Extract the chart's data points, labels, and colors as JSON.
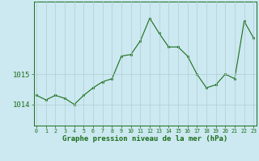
{
  "x": [
    0,
    1,
    2,
    3,
    4,
    5,
    6,
    7,
    8,
    9,
    10,
    11,
    12,
    13,
    14,
    15,
    16,
    17,
    18,
    19,
    20,
    21,
    22,
    23
  ],
  "y": [
    1014.3,
    1014.15,
    1014.3,
    1014.2,
    1014.0,
    1014.3,
    1014.55,
    1014.75,
    1014.85,
    1015.6,
    1015.65,
    1016.1,
    1016.85,
    1016.35,
    1015.9,
    1015.9,
    1015.6,
    1015.0,
    1014.55,
    1014.65,
    1015.0,
    1014.85,
    1016.75,
    1016.2
  ],
  "line_color": "#1a6e1a",
  "marker_color": "#1a6e1a",
  "bg_color": "#cce8f0",
  "grid_color": "#b0cdd4",
  "xlabel": "Graphe pression niveau de la mer (hPa)",
  "xlabel_color": "#1a6e1a",
  "tick_color": "#1a6e1a",
  "ylim": [
    1013.3,
    1017.4
  ],
  "yticks": [
    1014,
    1015
  ],
  "xlim": [
    -0.3,
    23.3
  ]
}
